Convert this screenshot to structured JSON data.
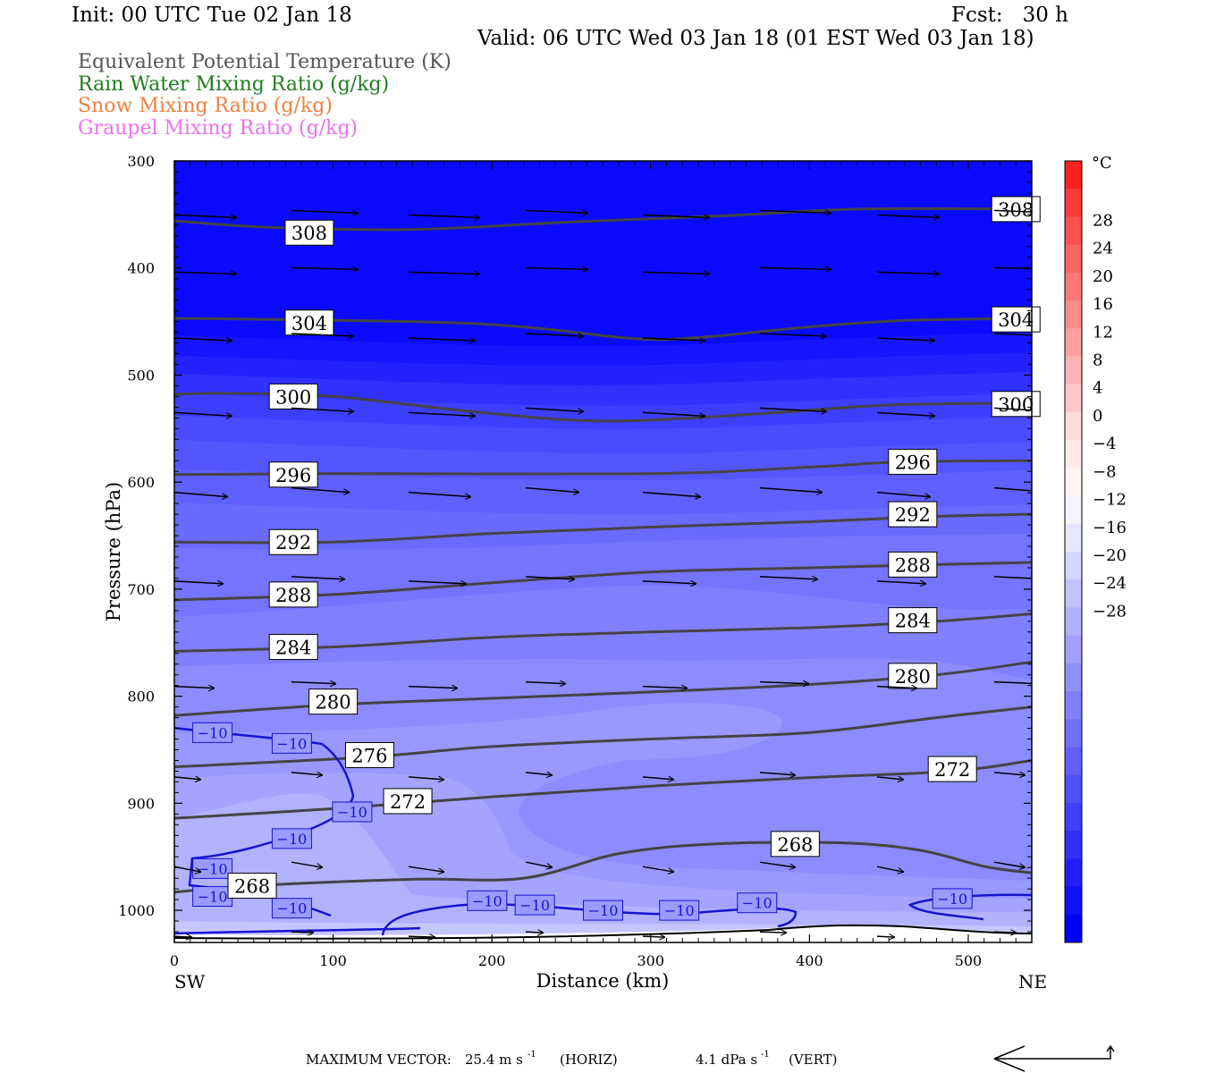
{
  "header": {
    "init": "Init: 00 UTC Tue 02 Jan 18",
    "fcst": "Fcst:   30 h",
    "valid": "Valid: 06 UTC Wed 03 Jan 18 (01 EST Wed 03 Jan 18)"
  },
  "legend": [
    {
      "label": "Equivalent Potential Temperature (K)",
      "color": "#555555"
    },
    {
      "label": "Rain Water Mixing Ratio (g/kg)",
      "color": "#1e7d1e"
    },
    {
      "label": "Snow Mixing Ratio (g/kg)",
      "color": "#f08040"
    },
    {
      "label": "Graupel Mixing Ratio (g/kg)",
      "color": "#f070f0"
    }
  ],
  "chart_data": {
    "type": "heatmap",
    "xlabel": "Distance (km)",
    "ylabel": "Pressure (hPa)",
    "x_ticks": [
      0,
      100,
      200,
      300,
      400,
      500
    ],
    "y_ticks": [
      300,
      400,
      500,
      600,
      700,
      800,
      900,
      1000
    ],
    "xlim": [
      0,
      540
    ],
    "ylim": [
      300,
      1030
    ],
    "y_reversed": true,
    "left_end_label": "SW",
    "right_end_label": "NE",
    "colorbar": {
      "unit": "°C",
      "labels": [
        "28",
        "24",
        "20",
        "16",
        "12",
        "8",
        "4",
        "0",
        "−4",
        "−8",
        "−12",
        "−16",
        "−20",
        "−24",
        "−28"
      ],
      "colors": [
        "#ff2020",
        "#ff3a3a",
        "#ff5050",
        "#ff6464",
        "#ff7878",
        "#ff8c8c",
        "#ffa0a0",
        "#ffb4b4",
        "#ffc8c8",
        "#ffdcdc",
        "#ffeaea",
        "#fff4f4",
        "#f4f4ff",
        "#e6e6ff",
        "#d4d4ff",
        "#c2c2ff",
        "#b0b0ff",
        "#a0a0ff",
        "#9090ff",
        "#8080ff",
        "#7070ff",
        "#6060ff",
        "#5050ff",
        "#4040ff",
        "#3030ff",
        "#2020ff",
        "#1010ff",
        "#0000ff"
      ]
    },
    "theta_e_contours": [
      {
        "level": 308,
        "labels": [
          [
            85,
            367
          ],
          [
            530,
            345
          ]
        ],
        "points": [
          [
            0,
            356
          ],
          [
            60,
            362
          ],
          [
            150,
            364
          ],
          [
            250,
            357
          ],
          [
            350,
            351
          ],
          [
            430,
            345
          ],
          [
            540,
            345
          ]
        ]
      },
      {
        "level": 304,
        "labels": [
          [
            85,
            451
          ],
          [
            530,
            448
          ]
        ],
        "points": [
          [
            0,
            447
          ],
          [
            150,
            450
          ],
          [
            220,
            455
          ],
          [
            290,
            466
          ],
          [
            330,
            465
          ],
          [
            400,
            455
          ],
          [
            460,
            449
          ],
          [
            540,
            447
          ]
        ]
      },
      {
        "level": 300,
        "labels": [
          [
            75,
            520
          ],
          [
            530,
            527
          ]
        ],
        "points": [
          [
            0,
            518
          ],
          [
            30,
            517
          ],
          [
            100,
            520
          ],
          [
            180,
            533
          ],
          [
            250,
            542
          ],
          [
            300,
            542
          ],
          [
            380,
            535
          ],
          [
            450,
            528
          ],
          [
            540,
            526
          ]
        ]
      },
      {
        "level": 296,
        "labels": [
          [
            75,
            593
          ],
          [
            465,
            581
          ]
        ],
        "points": [
          [
            0,
            593
          ],
          [
            100,
            592
          ],
          [
            300,
            592
          ],
          [
            400,
            586
          ],
          [
            460,
            581
          ],
          [
            540,
            580
          ]
        ]
      },
      {
        "level": 292,
        "labels": [
          [
            75,
            656
          ],
          [
            465,
            630
          ]
        ],
        "points": [
          [
            0,
            656
          ],
          [
            100,
            656
          ],
          [
            200,
            648
          ],
          [
            300,
            642
          ],
          [
            400,
            637
          ],
          [
            480,
            632
          ],
          [
            540,
            630
          ]
        ]
      },
      {
        "level": 288,
        "labels": [
          [
            75,
            705
          ],
          [
            465,
            677
          ]
        ],
        "points": [
          [
            0,
            710
          ],
          [
            100,
            705
          ],
          [
            200,
            694
          ],
          [
            300,
            684
          ],
          [
            400,
            680
          ],
          [
            480,
            677
          ],
          [
            540,
            675
          ]
        ]
      },
      {
        "level": 284,
        "labels": [
          [
            75,
            754
          ],
          [
            465,
            729
          ]
        ],
        "points": [
          [
            0,
            758
          ],
          [
            100,
            754
          ],
          [
            200,
            745
          ],
          [
            300,
            740
          ],
          [
            400,
            736
          ],
          [
            480,
            730
          ],
          [
            540,
            723
          ]
        ]
      },
      {
        "level": 280,
        "labels": [
          [
            100,
            805
          ],
          [
            465,
            781
          ]
        ],
        "points": [
          [
            0,
            818
          ],
          [
            100,
            808
          ],
          [
            200,
            802
          ],
          [
            300,
            796
          ],
          [
            400,
            789
          ],
          [
            480,
            780
          ],
          [
            540,
            768
          ]
        ]
      },
      {
        "level": 276,
        "labels": [
          [
            123,
            855
          ]
        ],
        "points": [
          [
            0,
            866
          ],
          [
            120,
            857
          ],
          [
            200,
            847
          ],
          [
            300,
            840
          ],
          [
            400,
            834
          ],
          [
            480,
            820
          ],
          [
            540,
            810
          ]
        ]
      },
      {
        "level": 272,
        "labels": [
          [
            147,
            898
          ],
          [
            490,
            868
          ]
        ],
        "points": [
          [
            0,
            914
          ],
          [
            100,
            905
          ],
          [
            200,
            894
          ],
          [
            300,
            884
          ],
          [
            400,
            876
          ],
          [
            490,
            870
          ],
          [
            540,
            860
          ]
        ]
      },
      {
        "level": 268,
        "labels": [
          [
            49,
            977
          ],
          [
            391,
            938
          ]
        ],
        "points": [
          [
            0,
            983
          ],
          [
            50,
            977
          ],
          [
            150,
            971
          ],
          [
            220,
            970
          ],
          [
            280,
            947
          ],
          [
            340,
            938
          ],
          [
            420,
            937
          ],
          [
            470,
            944
          ],
          [
            510,
            959
          ],
          [
            540,
            965
          ]
        ]
      }
    ],
    "minus10_labels": [
      [
        24,
        834
      ],
      [
        74,
        844
      ],
      [
        112,
        908
      ],
      [
        74,
        933
      ],
      [
        24,
        961
      ],
      [
        24,
        987
      ],
      [
        74,
        998
      ],
      [
        197,
        991
      ],
      [
        227,
        995
      ],
      [
        270,
        1000
      ],
      [
        318,
        1000
      ],
      [
        367,
        993
      ],
      [
        490,
        989
      ]
    ],
    "isotherm_minus10_label": "−10",
    "wind_vector_rows_hpa": [
      350,
      403,
      465,
      535,
      610,
      692,
      790,
      875,
      960,
      1023
    ],
    "max_vector": {
      "label": "MAXIMUM VECTOR:",
      "horiz_value": "25.4 m s",
      "horiz_unit": "(HORIZ)",
      "vert_value": "4.1 dPa s",
      "vert_unit": "(VERT)",
      "exponent": "-1"
    }
  }
}
